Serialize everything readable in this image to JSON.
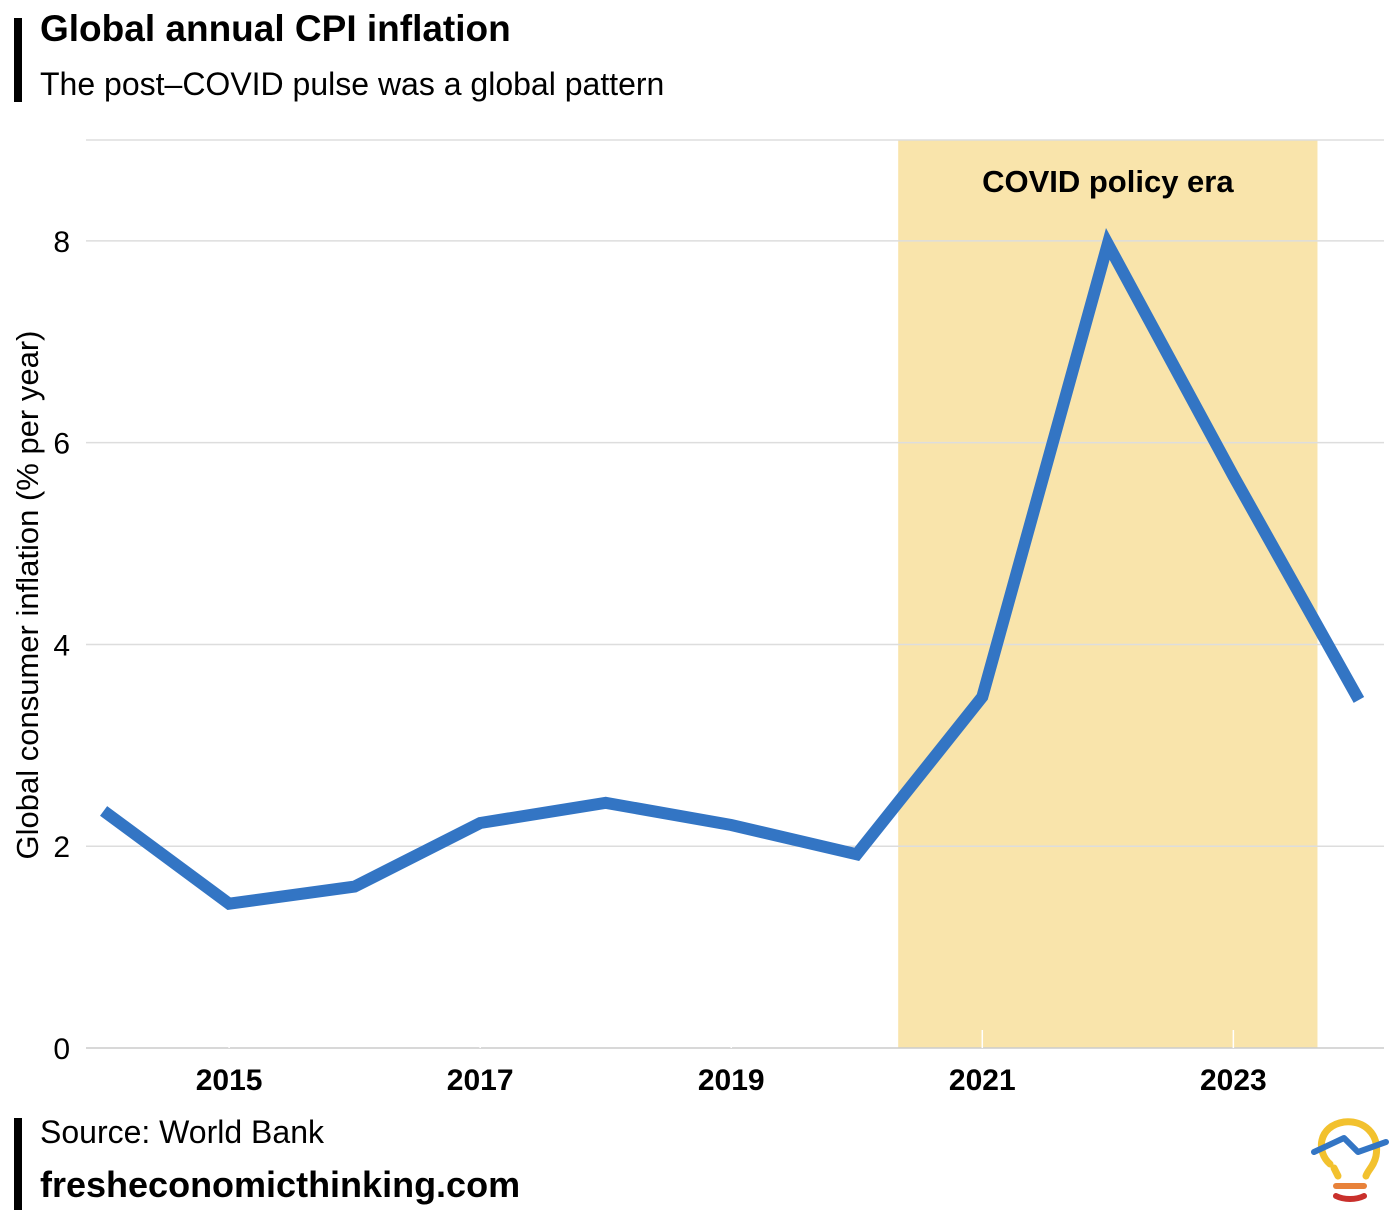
{
  "header": {
    "title": "Global annual CPI inflation",
    "subtitle": "The post–COVID pulse was a global pattern"
  },
  "footer": {
    "source": "Source: World Bank",
    "website": "fresheconomicthinking.com"
  },
  "chart_data": {
    "type": "line",
    "title": "Global annual CPI inflation",
    "subtitle": "The post–COVID pulse was a global pattern",
    "xlabel": "",
    "ylabel": "Global consumer inflation (% per year)",
    "x": [
      2014,
      2015,
      2016,
      2017,
      2018,
      2019,
      2020,
      2021,
      2022,
      2023,
      2024
    ],
    "series": [
      {
        "values": [
          2.35,
          1.43,
          1.6,
          2.23,
          2.43,
          2.21,
          1.92,
          3.48,
          7.97,
          5.67,
          3.45
        ]
      }
    ],
    "xlim": [
      2013.86,
      2024.2
    ],
    "ylim": [
      0,
      9
    ],
    "yticks": [
      0,
      2,
      4,
      6,
      8
    ],
    "xticks": [
      2015,
      2017,
      2019,
      2021,
      2023
    ],
    "shaded_region": {
      "x_start": 2020.33,
      "x_end": 2023.67,
      "label": "COVID policy era",
      "color": "#f9e4ab"
    },
    "line_color": "#3375c4",
    "gridlines": true,
    "legend": "none"
  }
}
